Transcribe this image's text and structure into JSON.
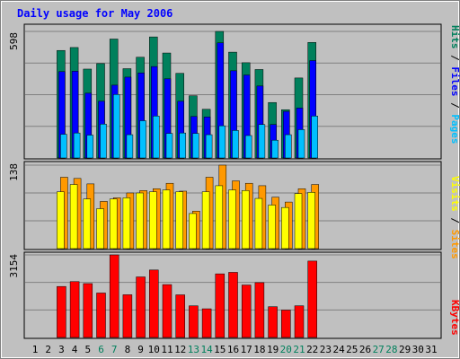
{
  "chart_data": [
    {
      "type": "bar",
      "title": "Daily usage for May 2006",
      "categories": [
        "1",
        "2",
        "3",
        "4",
        "5",
        "6",
        "7",
        "8",
        "9",
        "10",
        "11",
        "12",
        "13",
        "14",
        "15",
        "16",
        "17",
        "18",
        "19",
        "20",
        "21",
        "22",
        "23",
        "24",
        "25",
        "26",
        "27",
        "28",
        "29",
        "30",
        "31"
      ],
      "weekend_days": [
        "6",
        "7",
        "13",
        "14",
        "20",
        "21",
        "27",
        "28"
      ],
      "ymax_label": "598",
      "ylim": [
        0,
        598
      ],
      "legend": [
        "Pages",
        "Files",
        "Hits"
      ],
      "series": [
        {
          "name": "Hits",
          "color": "#00805c",
          "values": [
            0,
            0,
            508,
            522,
            420,
            446,
            562,
            422,
            476,
            572,
            496,
            400,
            294,
            230,
            598,
            500,
            450,
            418,
            262,
            228,
            378,
            546,
            0,
            0,
            0,
            0,
            0,
            0,
            0,
            0,
            0
          ]
        },
        {
          "name": "Files",
          "color": "#0000ff",
          "values": [
            0,
            0,
            408,
            410,
            306,
            268,
            344,
            382,
            402,
            432,
            374,
            268,
            196,
            194,
            544,
            412,
            392,
            340,
            158,
            220,
            236,
            460,
            0,
            0,
            0,
            0,
            0,
            0,
            0,
            0,
            0
          ]
        },
        {
          "name": "Pages",
          "color": "#00c0ff",
          "values": [
            0,
            0,
            112,
            118,
            108,
            160,
            300,
            110,
            176,
            198,
            116,
            118,
            116,
            110,
            152,
            130,
            106,
            158,
            84,
            110,
            134,
            198,
            0,
            0,
            0,
            0,
            0,
            0,
            0,
            0,
            0
          ]
        }
      ]
    },
    {
      "type": "bar",
      "categories": [
        "1",
        "2",
        "3",
        "4",
        "5",
        "6",
        "7",
        "8",
        "9",
        "10",
        "11",
        "12",
        "13",
        "14",
        "15",
        "16",
        "17",
        "18",
        "19",
        "20",
        "21",
        "22",
        "23",
        "24",
        "25",
        "26",
        "27",
        "28",
        "29",
        "30",
        "31"
      ],
      "ymax_label": "138",
      "ylim": [
        0,
        138
      ],
      "legend": [
        "Sites",
        "Visits"
      ],
      "series": [
        {
          "name": "Visits",
          "color": "#ff9900",
          "values": [
            0,
            0,
            118,
            116,
            107,
            78,
            84,
            92,
            96,
            99,
            108,
            95,
            62,
            118,
            138,
            112,
            108,
            104,
            85,
            77,
            99,
            106,
            0,
            0,
            0,
            0,
            0,
            0,
            0,
            0,
            0
          ]
        },
        {
          "name": "Sites",
          "color": "#ffff00",
          "values": [
            0,
            0,
            94,
            106,
            82,
            66,
            82,
            84,
            92,
            94,
            97,
            94,
            58,
            94,
            104,
            97,
            96,
            83,
            72,
            68,
            91,
            93,
            0,
            0,
            0,
            0,
            0,
            0,
            0,
            0,
            0
          ]
        }
      ]
    },
    {
      "type": "bar",
      "categories": [
        "1",
        "2",
        "3",
        "4",
        "5",
        "6",
        "7",
        "8",
        "9",
        "10",
        "11",
        "12",
        "13",
        "14",
        "15",
        "16",
        "17",
        "18",
        "19",
        "20",
        "21",
        "22",
        "23",
        "24",
        "25",
        "26",
        "27",
        "28",
        "29",
        "30",
        "31"
      ],
      "ymax_label": "3154",
      "ylim": [
        0,
        3154
      ],
      "legend": [
        "KBytes"
      ],
      "series": [
        {
          "name": "KBytes",
          "color": "#ff0000",
          "values": [
            0,
            0,
            1948,
            2133,
            2058,
            1698,
            3154,
            1632,
            2313,
            2577,
            2020,
            1628,
            1208,
            1095,
            2430,
            2487,
            2004,
            2094,
            1175,
            1046,
            1210,
            2918,
            0,
            0,
            0,
            0,
            0,
            0,
            0,
            0,
            0
          ]
        }
      ]
    }
  ]
}
